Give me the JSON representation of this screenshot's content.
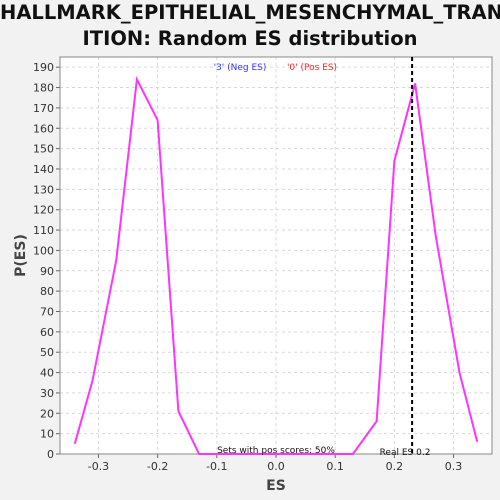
{
  "title_line1": "HALLMARK_EPITHELIAL_MESENCHYMAL_TRANS",
  "title_line2": "ITION: Random ES distribution",
  "legend_neg": "'3' (Neg ES)",
  "legend_pos": "'0' (Pos ES)",
  "pos_scores_text": "Sets with pos scores: 50%",
  "real_es_text": "Real ES 0.2",
  "colors": {
    "line": "#ff33ff",
    "neg_legend": "#3333ff",
    "pos_legend": "#ff2222",
    "grid": "#d9d9d9",
    "plot_bg": "#ffffff",
    "marker": "#000000"
  },
  "chart_data": {
    "type": "line",
    "title": "HALLMARK_EPITHELIAL_MESENCHYMAL_TRANSITION: Random ES distribution",
    "xlabel": "ES",
    "ylabel": "P(ES)",
    "xlim": [
      -0.365,
      0.365
    ],
    "ylim": [
      0,
      195
    ],
    "x_ticks": [
      -0.3,
      -0.2,
      -0.1,
      0.0,
      0.1,
      0.2,
      0.3
    ],
    "x_tick_labels": [
      "-0.3",
      "-0.2",
      "-0.1",
      "0.0",
      "0.1",
      "0.2",
      "0.3"
    ],
    "y_ticks": [
      0,
      10,
      20,
      30,
      40,
      50,
      60,
      70,
      80,
      90,
      100,
      110,
      120,
      130,
      140,
      150,
      160,
      170,
      180,
      190
    ],
    "y_tick_labels": [
      "0",
      "10",
      "20",
      "30",
      "40",
      "50",
      "60",
      "70",
      "80",
      "90",
      "100",
      "110",
      "120",
      "130",
      "140",
      "150",
      "160",
      "170",
      "180",
      "190"
    ],
    "grid": true,
    "series": [
      {
        "x": [
          -0.34,
          -0.31,
          -0.27,
          -0.235,
          -0.2,
          -0.165,
          -0.13,
          -0.09,
          -0.05,
          0.0,
          0.05,
          0.09,
          0.13,
          0.17,
          0.2,
          0.235,
          0.27,
          0.31,
          0.34
        ],
        "y": [
          5,
          36,
          95,
          184,
          164,
          21,
          0,
          0,
          0,
          0,
          0,
          0,
          0,
          16,
          144,
          182,
          107,
          40,
          6
        ]
      }
    ],
    "real_es": 0.23
  }
}
